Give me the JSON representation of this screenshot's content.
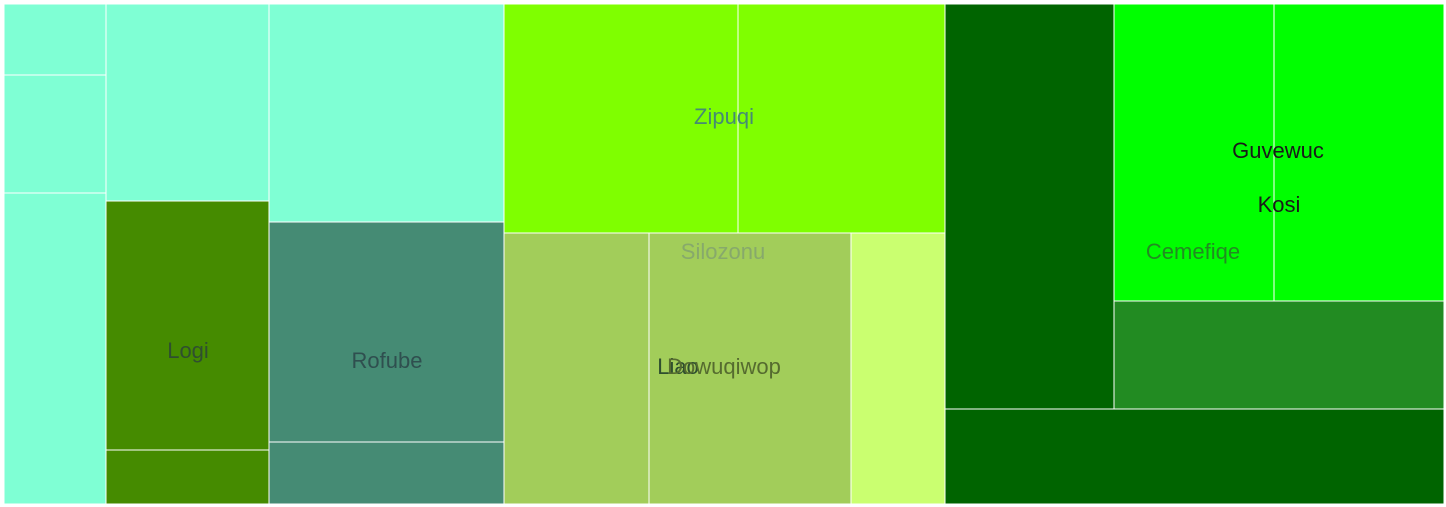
{
  "chart_data": {
    "type": "treemap",
    "groups": [
      {
        "name": "Rofube",
        "color": "#7fffd4",
        "label_color": "#2f4f4f",
        "children": [
          {
            "label": "",
            "value": 8
          },
          {
            "label": "",
            "value": 13
          },
          {
            "label": "",
            "value": 33
          },
          {
            "label": "",
            "value": 36
          },
          {
            "label": "",
            "value": 49
          },
          {
            "label": "Logi",
            "value": 44,
            "color": "#458b00",
            "label_color": "#2f4f2f"
          },
          {
            "label": "",
            "value": 7,
            "color": "#458b00"
          },
          {
            "label": "Rofube",
            "value": 56,
            "color": "#458b74",
            "label_color": "#2f4f4f"
          },
          {
            "label": "",
            "value": 16,
            "color": "#458b74"
          }
        ]
      },
      {
        "name": "Silozonu",
        "color": "#7fff00",
        "label_color": "#87a96b",
        "children": [
          {
            "label": "Zipuqi",
            "value": 58,
            "color": "#7fff00",
            "label_color": "#458b74"
          },
          {
            "label": "",
            "value": 51,
            "color": "#7fff00"
          },
          {
            "label": "Liao",
            "value": 40,
            "color": "#a2cd5a",
            "label_color": "#2f4f2f"
          },
          {
            "label": "Dowuqiwop",
            "value": 56,
            "color": "#a2cd5a",
            "label_color": "#556b2f"
          },
          {
            "label": "",
            "value": 26,
            "color": "#caff70"
          }
        ]
      },
      {
        "name": "Cemefiqe",
        "color": "#006400",
        "label_color": "#228b22",
        "children": [
          {
            "label": "",
            "value": 74,
            "color": "#006400"
          },
          {
            "label": "Guvewuc",
            "value": 51,
            "color": "#00ff00",
            "label_color": "#1a1a1a"
          },
          {
            "label": "Kosi",
            "value": 55,
            "color": "#00ff00",
            "label_color": "#1a1a1a"
          },
          {
            "label": "",
            "value": 35,
            "color": "#228b22"
          },
          {
            "label": "",
            "value": 45,
            "color": "#006400"
          }
        ]
      }
    ]
  }
}
